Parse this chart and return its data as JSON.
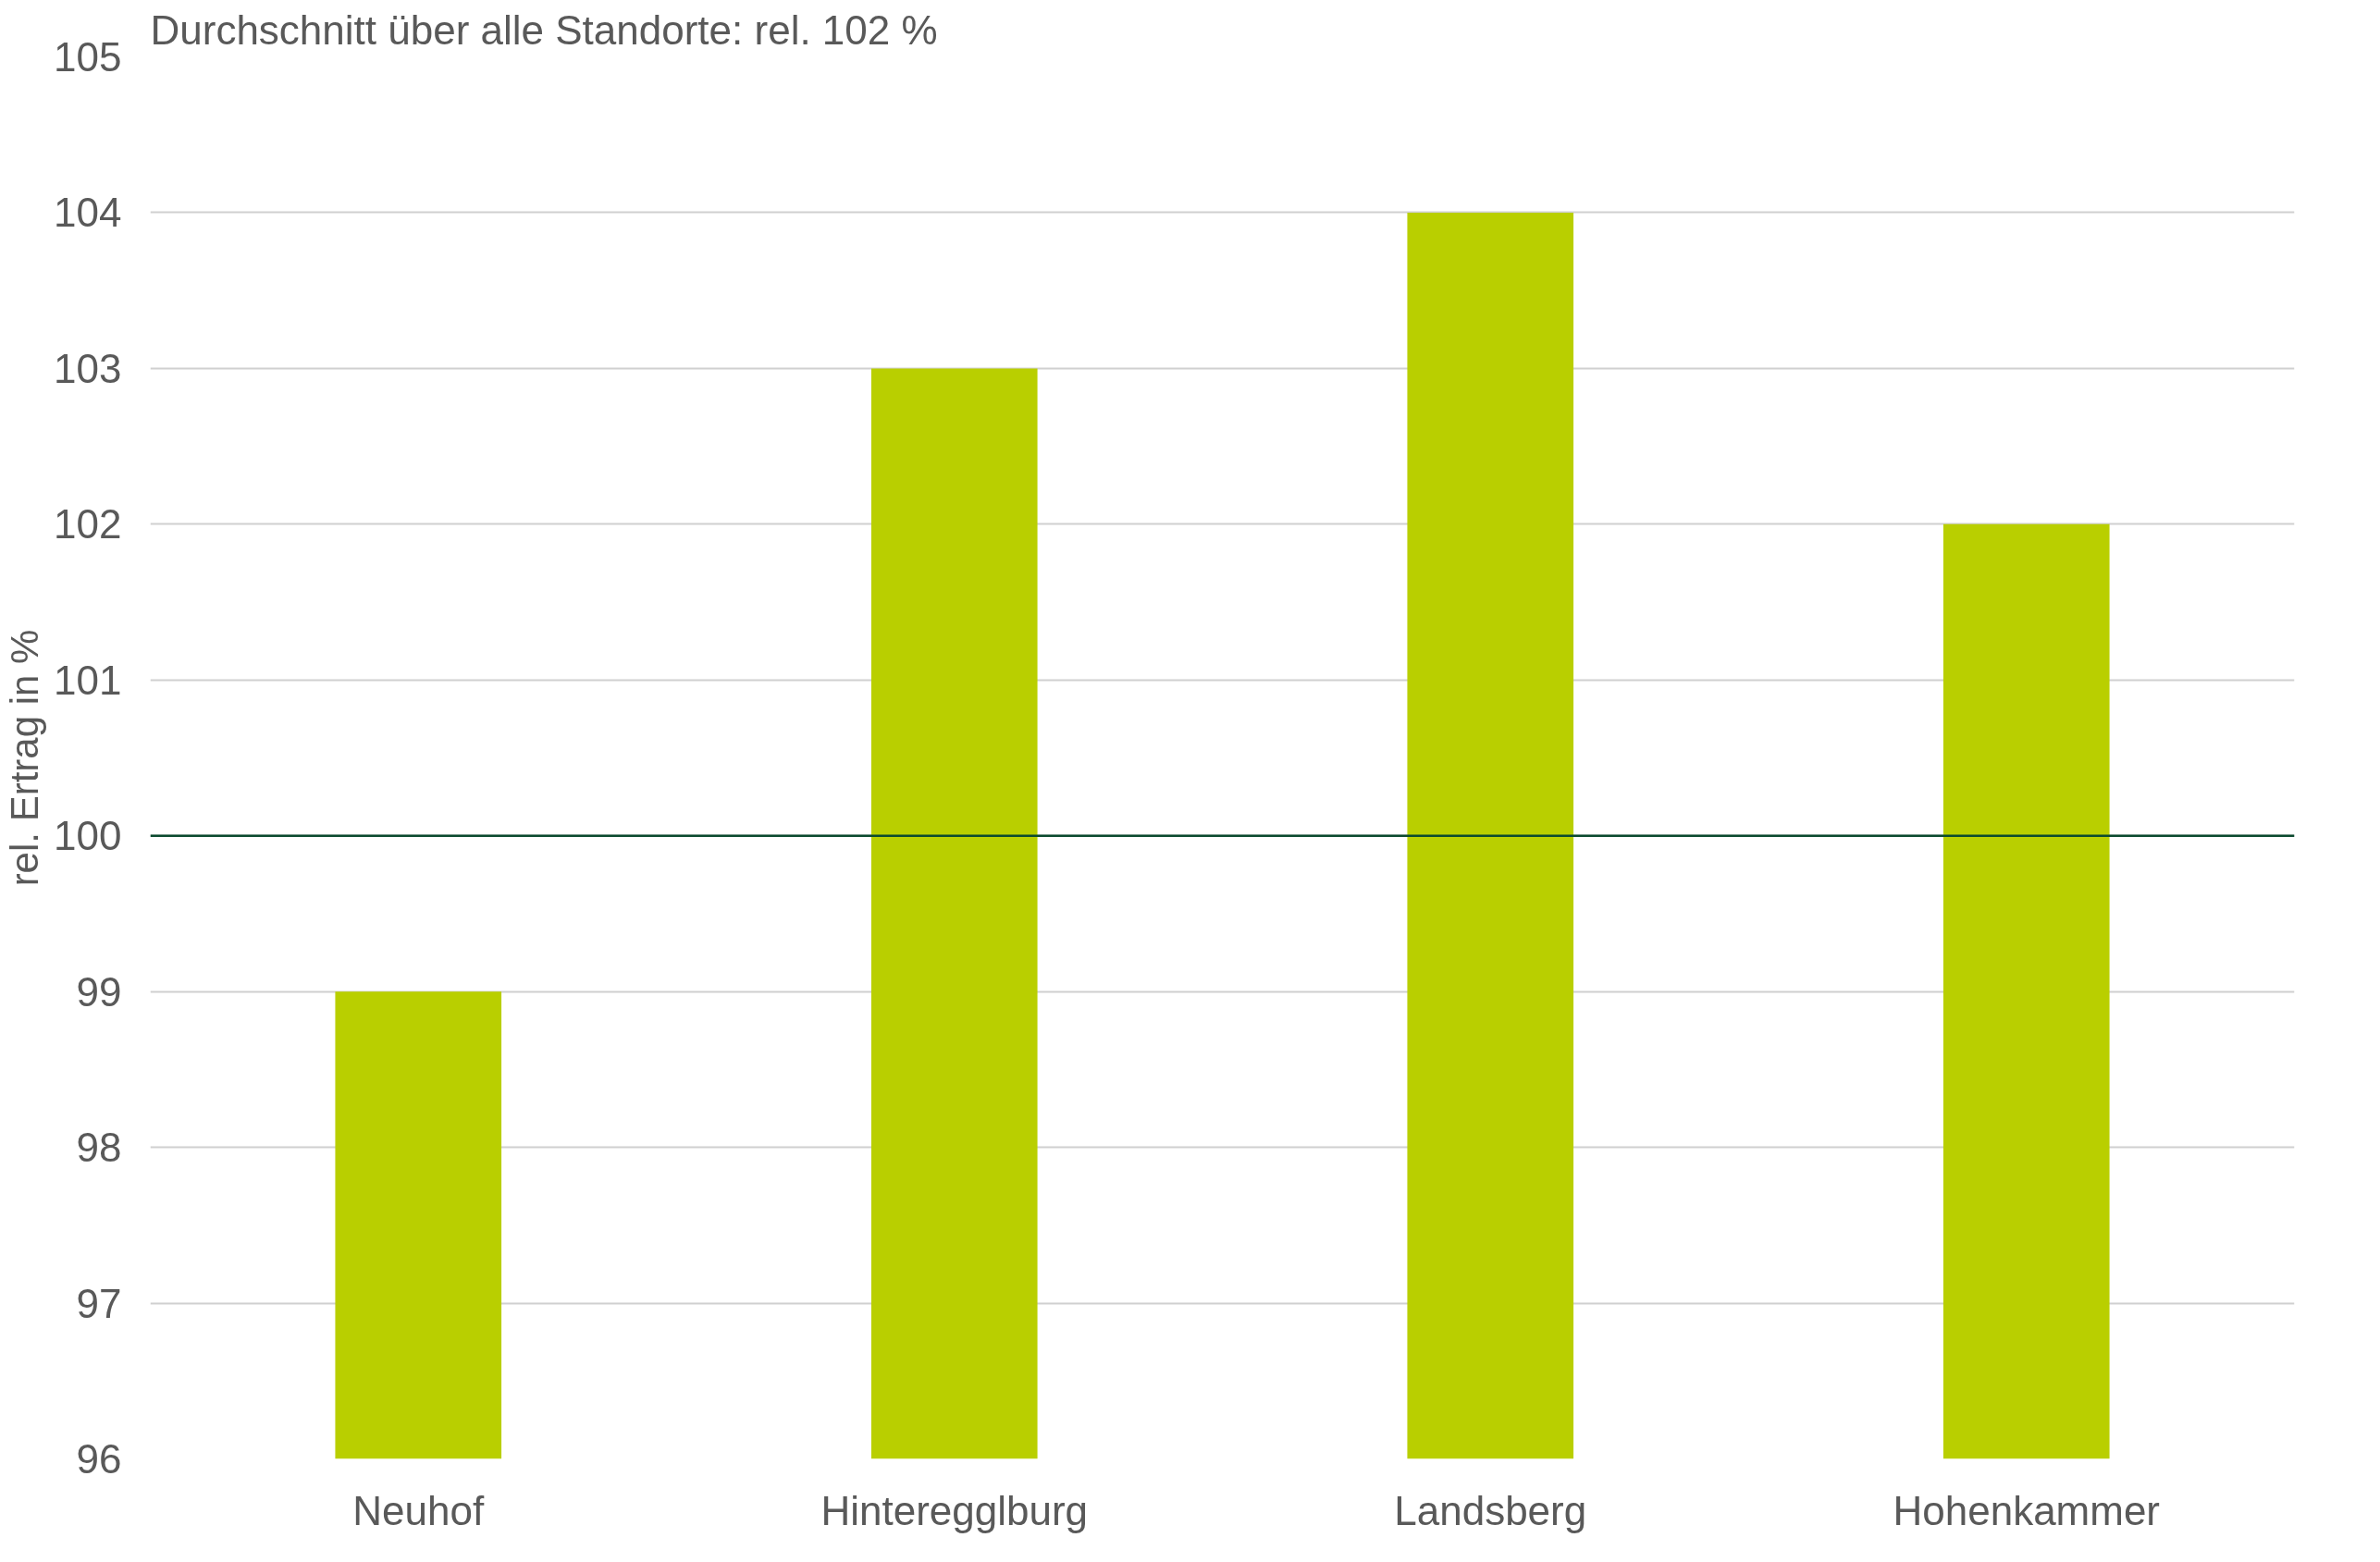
{
  "chart_data": {
    "type": "bar",
    "ylabel": "rel. Ertrag in %",
    "annotations": [
      "Durchschnitt über alle Standorte: rel. 102 %"
    ],
    "categories": [
      "Neuhof",
      "Hinteregglburg",
      "Landsberg",
      "Hohenkammer"
    ],
    "values": [
      99,
      103,
      104,
      102
    ],
    "color": "#b9cf00",
    "ylim": [
      96,
      105
    ],
    "yticks": [
      96,
      97,
      98,
      99,
      100,
      101,
      102,
      103,
      104,
      105
    ],
    "grid": "y",
    "ref_lines": [
      {
        "axis": "y",
        "value": 100,
        "label": null,
        "color": "#0b4a2f"
      }
    ]
  }
}
